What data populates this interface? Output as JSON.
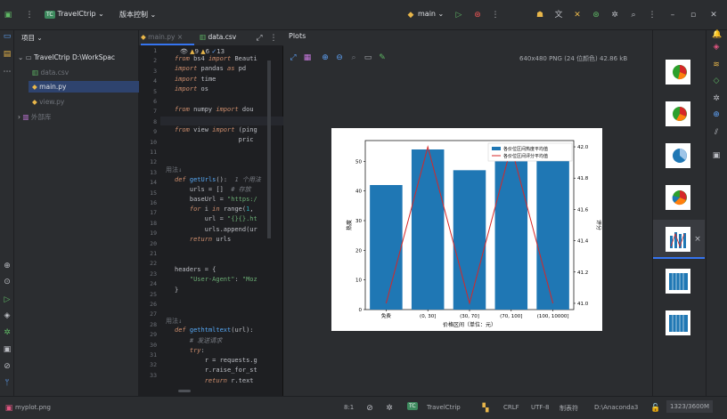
{
  "titlebar": {
    "project_badge": "TC",
    "project_name": "TravelCtrip",
    "vcs_label": "版本控制",
    "run_config": "main",
    "window_controls": [
      "minimize",
      "maximize",
      "close"
    ]
  },
  "project_panel": {
    "header": "项目",
    "root": "TravelCtrip D:\\WorkSpac",
    "files": [
      "data.csv",
      "main.py",
      "view.py"
    ],
    "external": "外部库"
  },
  "editor": {
    "tabs": [
      "main.py",
      "data.csv"
    ],
    "inspection": {
      "warnings": "9",
      "weak_warnings": "6",
      "typos": "13"
    },
    "line_numbers": [
      "1",
      "2",
      "3",
      "4",
      "5",
      "6",
      "7",
      "8",
      "9",
      "10",
      "11",
      "12",
      "13",
      "14",
      "15",
      "16",
      "17",
      "18",
      "19",
      "20",
      "21",
      "22",
      "23",
      "24",
      "25",
      "26",
      "27",
      "28",
      "29",
      "30",
      "31",
      "32",
      "33"
    ]
  },
  "plots": {
    "title": "Plots",
    "image_info": "640x480 PNG (24 位颜色) 42.86 kB"
  },
  "chart_data": {
    "type": "bar",
    "categories": [
      "免费",
      "(0, 30]",
      "(30, 70]",
      "(70, 100]",
      "(100, 10000]"
    ],
    "series": [
      {
        "name": "各价位区间热度平均值",
        "type": "bar",
        "values": [
          42,
          54,
          47,
          50,
          51
        ],
        "color": "#1f77b4"
      },
      {
        "name": "各价位区间评分平均值",
        "type": "line",
        "axis": "right",
        "values": [
          41.0,
          42.0,
          41.0,
          42.0,
          41.0
        ],
        "color": "#d62728"
      }
    ],
    "xlabel": "价格区间（单位：元）",
    "ylabel": "热度",
    "y2label": "评分",
    "ylim": [
      0,
      57
    ],
    "yticks": [
      "0",
      "10",
      "20",
      "30",
      "40",
      "50"
    ],
    "y2lim": [
      40.96,
      42.04
    ],
    "y2ticks": [
      "41.0",
      "41.2",
      "41.4",
      "41.6",
      "41.8",
      "42.0"
    ],
    "legend_position": "top-right"
  },
  "status": {
    "file": "myplot.png",
    "position": "8:1",
    "project_badge": "TC",
    "project": "TravelCtrip",
    "line_sep": "CRLF",
    "encoding": "UTF-8",
    "indent": "制表符",
    "interpreter": "D:\\Anaconda3",
    "image_size": "1323/3600M"
  }
}
